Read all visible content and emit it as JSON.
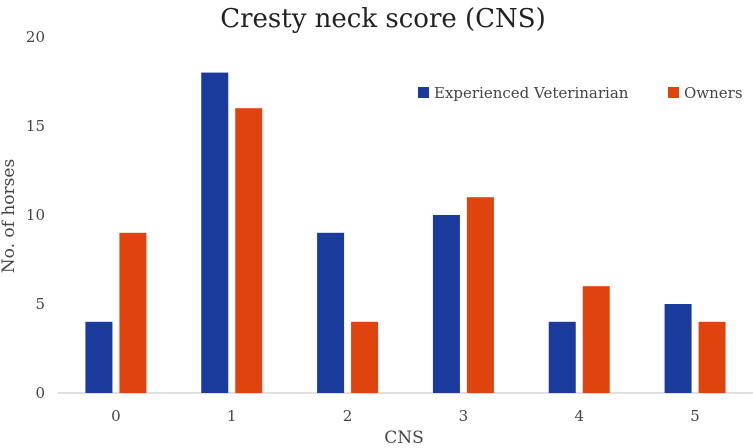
{
  "chart_data": {
    "type": "bar",
    "title": "Cresty neck score (CNS)",
    "xlabel": "CNS",
    "ylabel": "No. of horses",
    "categories": [
      "0",
      "1",
      "2",
      "3",
      "4",
      "5"
    ],
    "series": [
      {
        "name": "Experienced Veterinarian",
        "color": "#1a3a9c",
        "values": [
          4,
          18,
          9,
          10,
          4,
          5
        ]
      },
      {
        "name": "Owners",
        "color": "#e0440e",
        "values": [
          9,
          16,
          4,
          11,
          6,
          4
        ]
      }
    ],
    "ylim": [
      0,
      20
    ],
    "yticks": [
      "0",
      "5",
      "10",
      "15",
      "20"
    ],
    "grid": false,
    "legend_position": "top-right"
  }
}
